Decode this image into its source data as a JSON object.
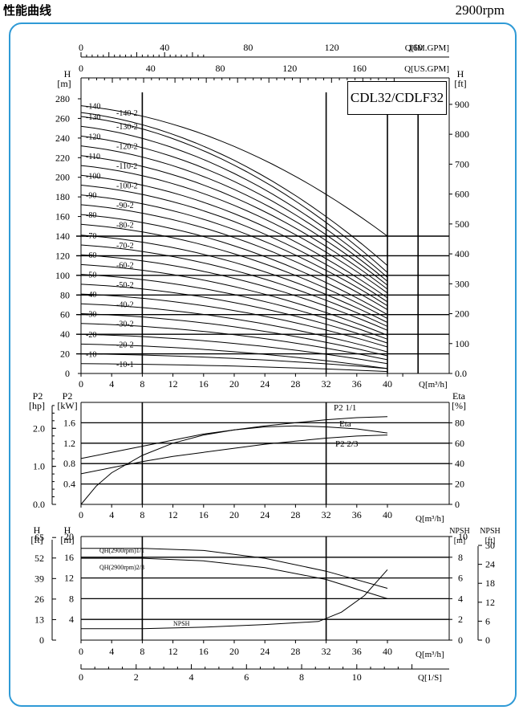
{
  "header": {
    "title": "性能曲线",
    "speed": "2900rpm"
  },
  "model": "CDL32/CDLF32",
  "colors": {
    "frame": "#2f9ad6",
    "ink": "#000000"
  },
  "chart_data": [
    {
      "type": "line",
      "panel": "head",
      "x_axis": {
        "label": "Q[m³/h]",
        "ticks": [
          "0",
          "4",
          "8",
          "12",
          "16",
          "20",
          "24",
          "28",
          "32",
          "36",
          "40"
        ],
        "range": [
          0,
          44
        ]
      },
      "top_axis_im": {
        "label": "Q[IM.GPM]",
        "ticks": [
          "0",
          "40",
          "80",
          "120",
          "160"
        ]
      },
      "top_axis_us": {
        "label": "Q[US.GPM]",
        "ticks": [
          "0",
          "40",
          "80",
          "120",
          "160"
        ]
      },
      "y_left": {
        "unit": "H",
        "unit2": "[m]",
        "ticks": [
          "0",
          "20",
          "40",
          "60",
          "80",
          "100",
          "120",
          "140",
          "160",
          "180",
          "200",
          "220",
          "240",
          "260",
          "280"
        ],
        "range": [
          0,
          280
        ]
      },
      "y_right": {
        "unit": "H",
        "unit2": "[ft]",
        "ticks": [
          "0.0",
          "100",
          "200",
          "300",
          "400",
          "500",
          "600",
          "700",
          "800",
          "900"
        ]
      },
      "series": [
        {
          "name": "-10-1",
          "h0": 10,
          "hmax": 2
        },
        {
          "name": "-10",
          "h0": 20,
          "hmax": 5
        },
        {
          "name": "-20-2",
          "h0": 30,
          "hmax": 5
        },
        {
          "name": "-20",
          "h0": 40,
          "hmax": 10
        },
        {
          "name": "-30-2",
          "h0": 51,
          "hmax": 14
        },
        {
          "name": "-30",
          "h0": 61,
          "hmax": 18
        },
        {
          "name": "-40-2",
          "h0": 71,
          "hmax": 22
        },
        {
          "name": "-40",
          "h0": 81,
          "hmax": 27
        },
        {
          "name": "-50-2",
          "h0": 91,
          "hmax": 31
        },
        {
          "name": "-50",
          "h0": 101,
          "hmax": 35
        },
        {
          "name": "-60-2",
          "h0": 111,
          "hmax": 39
        },
        {
          "name": "-60",
          "h0": 121,
          "hmax": 44
        },
        {
          "name": "-70-2",
          "h0": 131,
          "hmax": 48
        },
        {
          "name": "-70",
          "h0": 141,
          "hmax": 52
        },
        {
          "name": "-80-2",
          "h0": 152,
          "hmax": 56
        },
        {
          "name": "-80",
          "h0": 162,
          "hmax": 60
        },
        {
          "name": "-90-2",
          "h0": 172,
          "hmax": 65
        },
        {
          "name": "-90",
          "h0": 182,
          "hmax": 69
        },
        {
          "name": "-100-2",
          "h0": 192,
          "hmax": 73
        },
        {
          "name": "-100",
          "h0": 202,
          "hmax": 77
        },
        {
          "name": "-110-2",
          "h0": 212,
          "hmax": 82
        },
        {
          "name": "-110",
          "h0": 222,
          "hmax": 86
        },
        {
          "name": "-120-2",
          "h0": 232,
          "hmax": 90
        },
        {
          "name": "-120",
          "h0": 242,
          "hmax": 94
        },
        {
          "name": "-130-2",
          "h0": 252,
          "hmax": 98
        },
        {
          "name": "-130",
          "h0": 262,
          "hmax": 103
        },
        {
          "name": "-140-2",
          "h0": 266,
          "hmax": 110
        },
        {
          "name": "-140",
          "h0": 273,
          "hmax": 140
        }
      ]
    },
    {
      "type": "line",
      "panel": "power",
      "x_axis": {
        "label": "Q[m³/h]",
        "ticks": [
          "0",
          "4",
          "8",
          "12",
          "16",
          "20",
          "24",
          "28",
          "32",
          "36",
          "40"
        ],
        "range": [
          0,
          44
        ]
      },
      "y_left_hp": {
        "unit": "P2",
        "unit2": "[hp]",
        "ticks": [
          "0.0",
          "1.0",
          "2.0"
        ]
      },
      "y_left_kw": {
        "unit": "P2",
        "unit2": "[kW]",
        "ticks": [
          "0.4",
          "0.8",
          "1.2",
          "1.6"
        ],
        "range": [
          0,
          2.0
        ]
      },
      "y_right": {
        "unit": "Eta",
        "unit2": "[%]",
        "ticks": [
          "0",
          "20",
          "40",
          "60",
          "80"
        ],
        "range": [
          0,
          100
        ]
      },
      "series": [
        {
          "name": "P2 1/1",
          "axis": "kW",
          "x": [
            0,
            4,
            8,
            12,
            16,
            20,
            24,
            28,
            32,
            36,
            40
          ],
          "y": [
            0.9,
            1.02,
            1.14,
            1.26,
            1.38,
            1.46,
            1.54,
            1.6,
            1.66,
            1.7,
            1.72
          ]
        },
        {
          "name": "P2 2/3",
          "axis": "kW",
          "x": [
            0,
            4,
            8,
            12,
            16,
            20,
            24,
            28,
            32,
            36,
            40
          ],
          "y": [
            0.6,
            0.72,
            0.84,
            0.94,
            1.02,
            1.1,
            1.18,
            1.24,
            1.3,
            1.34,
            1.36
          ]
        },
        {
          "name": "Eta",
          "axis": "%",
          "x": [
            0,
            2,
            4,
            8,
            12,
            16,
            20,
            24,
            28,
            32,
            36,
            40
          ],
          "y": [
            0,
            18,
            31,
            48,
            60,
            68,
            73,
            76,
            77,
            76,
            74,
            70
          ]
        }
      ]
    },
    {
      "type": "line",
      "panel": "npsh",
      "x_axis": {
        "label": "Q[m³/h]",
        "ticks": [
          "0",
          "4",
          "8",
          "12",
          "16",
          "20",
          "24",
          "28",
          "32",
          "36",
          "40"
        ],
        "range": [
          0,
          44
        ]
      },
      "x_axis_ls": {
        "label": "Q[1/S]",
        "ticks": [
          "0",
          "2",
          "4",
          "6",
          "8",
          "10"
        ]
      },
      "y_left_ft": {
        "unit": "H",
        "unit2": "[ft]",
        "ticks": [
          "0",
          "13",
          "26",
          "39",
          "52",
          "65"
        ]
      },
      "y_left_m": {
        "unit": "H",
        "unit2": "[m]",
        "ticks": [
          "4",
          "8",
          "12",
          "16",
          "20"
        ],
        "range": [
          0,
          20
        ]
      },
      "y_right_m": {
        "unit": "NPSH",
        "unit2": "[m]",
        "ticks": [
          "0",
          "2",
          "4",
          "6",
          "8",
          "10"
        ],
        "range": [
          0,
          10
        ]
      },
      "y_right_ft": {
        "unit": "NPSH",
        "unit2": "[ft]",
        "ticks": [
          "0",
          "6",
          "12",
          "18",
          "24",
          "30"
        ]
      },
      "series": [
        {
          "name": "QH(2900rpm)1/1",
          "axis": "m",
          "x": [
            0,
            8,
            16,
            24,
            32,
            40
          ],
          "y": [
            17.7,
            17.7,
            17.3,
            15.8,
            13.3,
            10
          ]
        },
        {
          "name": "QH(2900rpm)2/3",
          "axis": "m",
          "x": [
            0,
            8,
            16,
            24,
            32,
            40
          ],
          "y": [
            15.8,
            15.8,
            15.3,
            14,
            11.7,
            8
          ]
        },
        {
          "name": "NPSH",
          "axis": "npsh",
          "x": [
            0,
            8,
            16,
            24,
            31,
            34,
            37,
            40
          ],
          "y": [
            1.1,
            1.1,
            1.25,
            1.5,
            1.8,
            2.7,
            4.3,
            6.8
          ]
        }
      ]
    }
  ]
}
